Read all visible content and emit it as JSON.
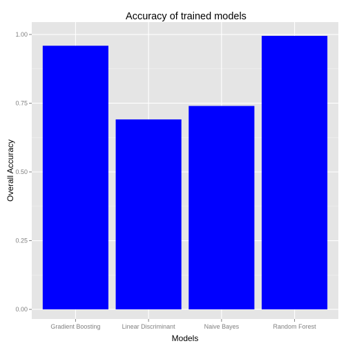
{
  "chart_data": {
    "type": "bar",
    "title": "Accuracy of trained models",
    "xlabel": "Models",
    "ylabel": "Overall Accuracy",
    "categories": [
      "Gradient Boosting",
      "Linear Discriminant",
      "Naive Bayes",
      "Random Forest"
    ],
    "values": [
      0.959,
      0.691,
      0.74,
      0.995
    ],
    "ylim": [
      -0.035,
      1.045
    ],
    "yticks": [
      0,
      0.25,
      0.5,
      0.75,
      1
    ],
    "ytick_labels": [
      "0.00",
      "0.25",
      "0.50",
      "0.75",
      "1.00"
    ],
    "bar_color": "#0000ff",
    "panel_background": "#e5e5e5",
    "grid_color": "#ffffff",
    "grid": true,
    "legend": "none"
  }
}
